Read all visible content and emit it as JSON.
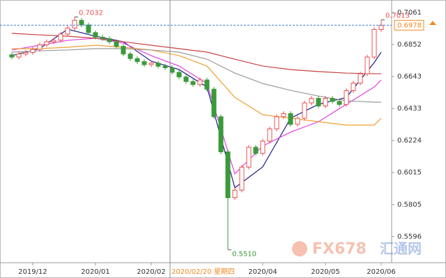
{
  "chart_data": {
    "type": "candlestick",
    "categories": [
      null,
      null,
      null,
      "2019/12",
      null,
      null,
      null,
      null,
      null,
      null,
      null,
      null,
      "2020/01",
      null,
      null,
      null,
      null,
      null,
      null,
      null,
      "2020/02",
      null,
      null,
      null,
      null,
      null,
      null,
      null,
      null,
      null,
      null,
      null,
      null,
      null,
      null,
      null,
      "2020/04",
      null,
      null,
      null,
      null,
      null,
      null,
      null,
      null,
      "2020/05",
      null,
      null,
      null,
      null,
      null,
      null,
      null,
      "2020/06"
    ],
    "open": [
      0.6785,
      0.677,
      0.679,
      0.68,
      0.682,
      0.685,
      0.687,
      0.688,
      0.692,
      0.696,
      0.701,
      0.698,
      0.693,
      0.69,
      0.689,
      0.687,
      0.684,
      0.679,
      0.676,
      0.674,
      0.672,
      0.673,
      0.671,
      0.67,
      0.667,
      0.664,
      0.661,
      0.659,
      0.662,
      0.656,
      0.638,
      0.615,
      0.585,
      0.59,
      0.605,
      0.618,
      0.614,
      0.622,
      0.63,
      0.638,
      0.64,
      0.633,
      0.637,
      0.647,
      0.65,
      0.645,
      0.65,
      0.648,
      0.646,
      0.655,
      0.66,
      0.666,
      0.677,
      0.695
    ],
    "high": [
      0.68,
      0.6805,
      0.6815,
      0.6835,
      0.6865,
      0.6885,
      0.6895,
      0.6935,
      0.6975,
      0.7032,
      0.7025,
      0.6995,
      0.6945,
      0.6915,
      0.6905,
      0.6885,
      0.6855,
      0.6805,
      0.6775,
      0.6755,
      0.6745,
      0.6745,
      0.6725,
      0.6715,
      0.6685,
      0.6655,
      0.6625,
      0.6635,
      0.6635,
      0.6575,
      0.6395,
      0.6165,
      0.5915,
      0.6065,
      0.6195,
      0.6195,
      0.6235,
      0.6315,
      0.6395,
      0.6415,
      0.6415,
      0.6385,
      0.6485,
      0.6515,
      0.6515,
      0.6515,
      0.6515,
      0.6495,
      0.6565,
      0.6615,
      0.6675,
      0.6785,
      0.6965,
      0.7013
    ],
    "low": [
      0.6755,
      0.6755,
      0.6775,
      0.6785,
      0.6805,
      0.6835,
      0.6855,
      0.6865,
      0.6905,
      0.6945,
      0.6965,
      0.6915,
      0.6885,
      0.6875,
      0.6855,
      0.6825,
      0.6775,
      0.6745,
      0.6725,
      0.6705,
      0.6705,
      0.6695,
      0.6685,
      0.6655,
      0.6625,
      0.6595,
      0.6575,
      0.6575,
      0.6545,
      0.6365,
      0.6135,
      0.551,
      0.5835,
      0.5885,
      0.6035,
      0.6125,
      0.6125,
      0.6205,
      0.6285,
      0.6365,
      0.6315,
      0.6315,
      0.6355,
      0.6455,
      0.6435,
      0.6435,
      0.6465,
      0.6445,
      0.6445,
      0.6535,
      0.6585,
      0.6645,
      0.6755,
      0.6935
    ],
    "close": [
      0.677,
      0.679,
      0.68,
      0.682,
      0.685,
      0.687,
      0.688,
      0.692,
      0.696,
      0.701,
      0.698,
      0.693,
      0.69,
      0.689,
      0.687,
      0.684,
      0.679,
      0.676,
      0.674,
      0.672,
      0.673,
      0.671,
      0.67,
      0.667,
      0.664,
      0.661,
      0.659,
      0.662,
      0.656,
      0.638,
      0.615,
      0.585,
      0.59,
      0.605,
      0.618,
      0.614,
      0.622,
      0.63,
      0.638,
      0.64,
      0.633,
      0.637,
      0.647,
      0.65,
      0.645,
      0.65,
      0.648,
      0.646,
      0.655,
      0.66,
      0.666,
      0.677,
      0.695,
      0.6978
    ],
    "up_color": "#e8504f",
    "down_color": "#3a9a3a",
    "series": [
      {
        "color": "#1c1c8a",
        "x": [
          0,
          4,
          8,
          12,
          16,
          20,
          24,
          28,
          32,
          36,
          40,
          44,
          48,
          52,
          53
        ],
        "values": [
          0.6779,
          0.6825,
          0.6952,
          0.6906,
          0.687,
          0.6743,
          0.6688,
          0.6574,
          0.5915,
          0.6052,
          0.637,
          0.6461,
          0.6506,
          0.6734,
          0.6802
        ]
      },
      {
        "color": "#e040e0",
        "x": [
          0,
          4,
          8,
          12,
          16,
          20,
          24,
          28,
          32,
          36,
          40,
          44,
          48,
          52,
          53
        ],
        "values": [
          0.6816,
          0.6847,
          0.6879,
          0.6893,
          0.6861,
          0.6779,
          0.6711,
          0.6597,
          0.6006,
          0.6188,
          0.6279,
          0.6347,
          0.6461,
          0.6574,
          0.662
        ]
      },
      {
        "color": "#f0a030",
        "x": [
          0,
          4,
          8,
          12,
          16,
          20,
          24,
          28,
          32,
          36,
          40,
          44,
          48,
          52,
          53
        ],
        "values": [
          0.6825,
          0.6825,
          0.6834,
          0.6847,
          0.6834,
          0.6816,
          0.6779,
          0.6711,
          0.6506,
          0.6393,
          0.637,
          0.6347,
          0.6325,
          0.6325,
          0.637
        ]
      },
      {
        "color": "#9a9a9a",
        "x": [
          0,
          4,
          8,
          12,
          16,
          20,
          24,
          28,
          32,
          36,
          40,
          44,
          48,
          52,
          53
        ],
        "values": [
          0.6802,
          0.6811,
          0.6816,
          0.6825,
          0.6825,
          0.6816,
          0.6802,
          0.6756,
          0.6665,
          0.6597,
          0.6552,
          0.6515,
          0.6484,
          0.6475,
          0.6475
        ]
      },
      {
        "color": "#c84040",
        "x": [
          0,
          4,
          8,
          12,
          16,
          20,
          24,
          28,
          32,
          36,
          40,
          44,
          48,
          52,
          53
        ],
        "values": [
          0.6925,
          0.6915,
          0.6906,
          0.6893,
          0.687,
          0.6847,
          0.6825,
          0.6802,
          0.6756,
          0.6711,
          0.6688,
          0.6675,
          0.6665,
          0.6661,
          0.6661
        ]
      }
    ],
    "annotations": [
      {
        "kind": "high",
        "value": 0.7032,
        "label": "0.7032",
        "color": "#e8504f"
      },
      {
        "kind": "low",
        "value": 0.551,
        "label": "0.5510",
        "color": "#3a9a3a"
      },
      {
        "kind": "high",
        "value": 0.7013,
        "label": "0.7013",
        "color": "#e8504f"
      }
    ],
    "current_price": {
      "value": 0.6978,
      "label": "0.6978",
      "color": "#f08a20"
    },
    "crosshair_label": "2020/02/20 星期四",
    "watermark": [
      "FX678",
      "汇通网"
    ],
    "ylim": [
      0.5425,
      0.7143
    ],
    "yticks": [
      0.7061,
      0.6852,
      0.6643,
      0.6433,
      0.6224,
      0.6015,
      0.5805,
      0.5596
    ]
  }
}
